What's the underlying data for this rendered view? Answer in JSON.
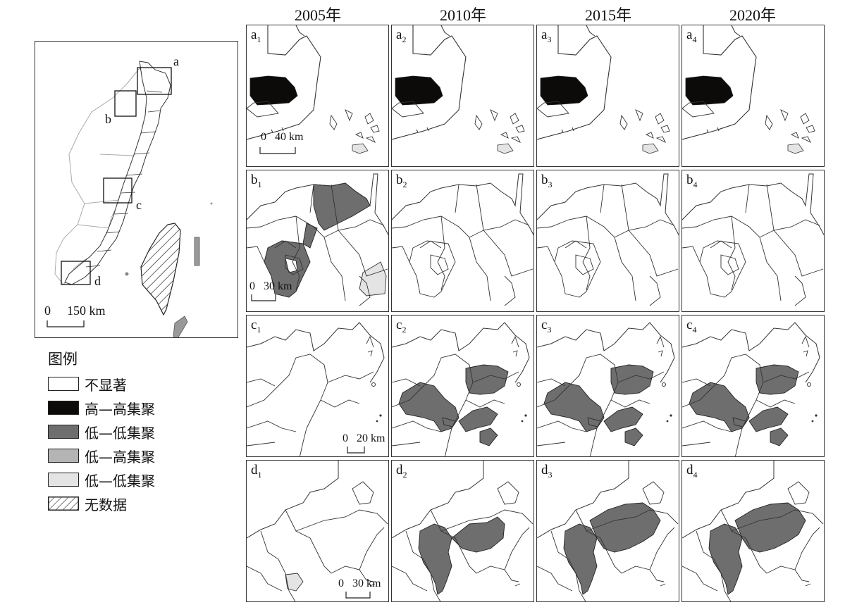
{
  "years": [
    "2005年",
    "2010年",
    "2015年",
    "2020年"
  ],
  "rows": [
    "a",
    "b",
    "c",
    "d"
  ],
  "overview": {
    "box_labels": [
      "a",
      "b",
      "c",
      "d"
    ],
    "scale_zero": "0",
    "scale_label": "150 km"
  },
  "scale_bars": {
    "a": {
      "zero": "0",
      "label": "40 km"
    },
    "b": {
      "zero": "0",
      "label": "30 km"
    },
    "c": {
      "zero": "0",
      "label": "20 km"
    },
    "d": {
      "zero": "0",
      "label": "30 km"
    }
  },
  "legend": {
    "title": "图例",
    "items": [
      {
        "label": "不显著",
        "color": "#ffffff",
        "pattern": "none"
      },
      {
        "label": "高—高集聚",
        "color": "#0d0a0a",
        "pattern": "none"
      },
      {
        "label": "低—低集聚",
        "color": "#6e6e6e",
        "pattern": "none"
      },
      {
        "label": "低—高集聚",
        "color": "#b4b4b4",
        "pattern": "none"
      },
      {
        "label": "低—低集聚",
        "color": "#e4e4e4",
        "pattern": "none"
      },
      {
        "label": "无数据",
        "color": "#ffffff",
        "pattern": "hatch"
      }
    ]
  },
  "panels": {
    "a": [
      "high-high",
      "high-high",
      "high-high",
      "high-high"
    ],
    "b": [
      "low-low",
      "not-significant",
      "not-significant",
      "not-significant"
    ],
    "c": [
      "not-significant",
      "low-low",
      "low-low",
      "low-low"
    ],
    "d": [
      "low-high-small",
      "low-low",
      "low-low",
      "low-low"
    ]
  },
  "colors": {
    "high_high": "#0d0a0a",
    "low_low": "#6e6e6e",
    "low_high": "#b4b4b4",
    "low_low_light": "#e4e4e4"
  }
}
